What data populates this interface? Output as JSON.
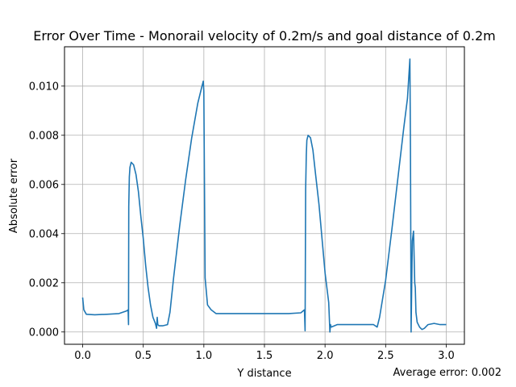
{
  "chart_data": {
    "type": "line",
    "title": "Error Over Time - Monorail velocity of 0.2m/s and goal distance of 0.2m",
    "xlabel": "Y distance",
    "ylabel": "Absolute error",
    "xlim": [
      -0.15,
      3.15
    ],
    "ylim": [
      -0.0005,
      0.0116
    ],
    "xticks": [
      "0.0",
      "0.5",
      "1.0",
      "1.5",
      "2.0",
      "2.5",
      "3.0"
    ],
    "xtick_values": [
      0.0,
      0.5,
      1.0,
      1.5,
      2.0,
      2.5,
      3.0
    ],
    "yticks": [
      "0.000",
      "0.002",
      "0.004",
      "0.006",
      "0.008",
      "0.010"
    ],
    "ytick_values": [
      0.0,
      0.002,
      0.004,
      0.006,
      0.008,
      0.01
    ],
    "grid": true,
    "line_color": "#1f77b4",
    "series": [
      {
        "x": [
          0.0,
          0.01,
          0.03,
          0.1,
          0.2,
          0.3,
          0.36,
          0.375,
          0.378,
          0.38,
          0.385,
          0.39,
          0.4,
          0.42,
          0.44,
          0.46,
          0.48,
          0.5,
          0.52,
          0.54,
          0.56,
          0.58,
          0.6,
          0.61,
          0.615,
          0.62,
          0.63,
          0.66,
          0.7,
          0.72,
          0.75,
          0.8,
          0.85,
          0.9,
          0.95,
          0.98,
          0.995,
          1.0,
          1.01,
          1.03,
          1.06,
          1.1,
          1.3,
          1.5,
          1.7,
          1.8,
          1.83,
          1.835,
          1.84,
          1.845,
          1.85,
          1.86,
          1.88,
          1.9,
          1.92,
          1.95,
          2.0,
          2.03,
          2.04,
          2.045,
          2.05,
          2.1,
          2.2,
          2.3,
          2.4,
          2.43,
          2.45,
          2.5,
          2.55,
          2.6,
          2.65,
          2.68,
          2.7,
          2.705,
          2.71,
          2.72,
          2.73,
          2.74,
          2.745,
          2.75,
          2.76,
          2.78,
          2.8,
          2.82,
          2.85,
          2.9,
          2.95,
          3.0
        ],
        "y": [
          0.0014,
          0.0009,
          0.00072,
          0.0007,
          0.00072,
          0.00075,
          0.00085,
          0.0009,
          0.0003,
          0.0051,
          0.0063,
          0.0067,
          0.0069,
          0.0068,
          0.0064,
          0.0057,
          0.0047,
          0.0038,
          0.0027,
          0.0018,
          0.0011,
          0.0006,
          0.00035,
          0.00015,
          0.0006,
          0.0003,
          0.00025,
          0.00025,
          0.0003,
          0.0008,
          0.0022,
          0.0043,
          0.0062,
          0.0079,
          0.0093,
          0.0099,
          0.0102,
          0.0098,
          0.0022,
          0.0011,
          0.0009,
          0.00075,
          0.00075,
          0.00075,
          0.00075,
          0.00078,
          0.0009,
          5e-05,
          0.0058,
          0.0072,
          0.0078,
          0.008,
          0.0079,
          0.0074,
          0.0065,
          0.0052,
          0.0024,
          0.0012,
          0.0,
          0.0003,
          0.0002,
          0.0003,
          0.0003,
          0.0003,
          0.0003,
          0.0002,
          0.0006,
          0.0021,
          0.0041,
          0.0062,
          0.0083,
          0.0095,
          0.0111,
          0.0075,
          0.0,
          0.0037,
          0.0041,
          0.002,
          0.0018,
          0.0008,
          0.0004,
          0.0002,
          0.0001,
          0.00015,
          0.0003,
          0.00035,
          0.0003,
          0.0003
        ]
      }
    ]
  },
  "footer": {
    "average_error": "Average error: 0.002"
  }
}
